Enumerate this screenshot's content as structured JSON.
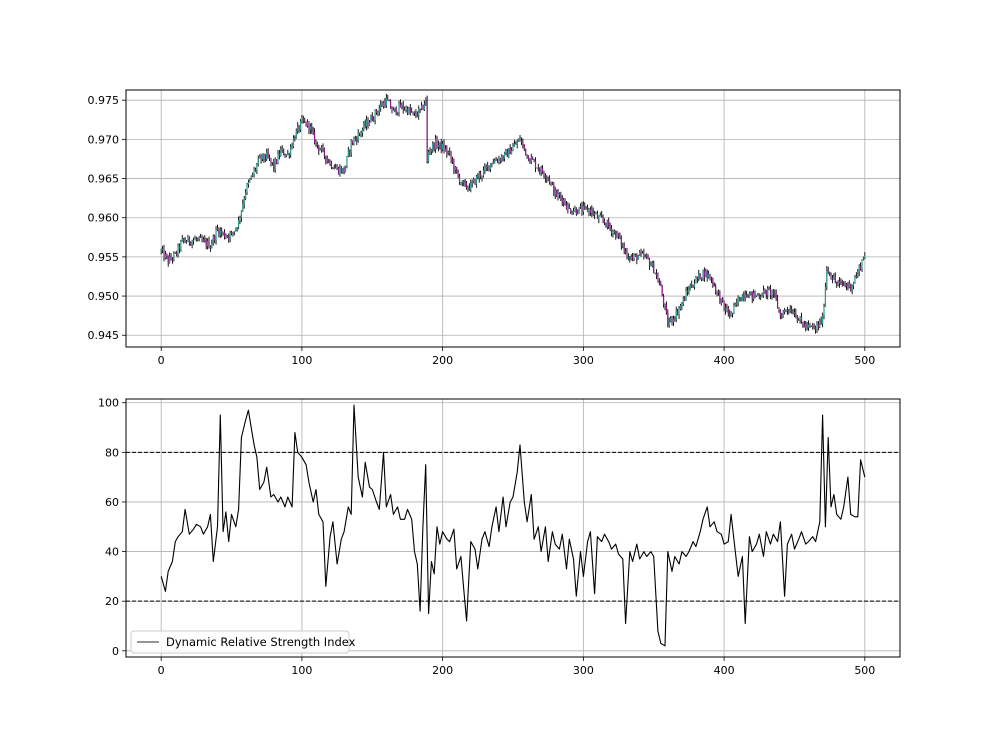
{
  "chart_data": [
    {
      "type": "candlestick",
      "title": "",
      "xlabel": "",
      "ylabel": "",
      "xlim": [
        -25,
        525
      ],
      "ylim": [
        0.9435,
        0.9763
      ],
      "xticks": [
        0,
        100,
        200,
        300,
        400,
        500
      ],
      "yticks": [
        0.945,
        0.95,
        0.955,
        0.96,
        0.965,
        0.97,
        0.975
      ],
      "ytick_format": 3,
      "grid": true,
      "colors": {
        "up": "#2a9d8f",
        "down": "#8b1a8b",
        "wick": "#000000"
      },
      "anchors": {
        "x": [
          0,
          5,
          10,
          15,
          25,
          35,
          40,
          45,
          50,
          55,
          60,
          65,
          70,
          75,
          80,
          85,
          90,
          95,
          100,
          105,
          110,
          115,
          120,
          125,
          130,
          135,
          140,
          145,
          150,
          155,
          160,
          165,
          170,
          175,
          180,
          185,
          188,
          189,
          190,
          195,
          200,
          205,
          210,
          215,
          220,
          225,
          230,
          235,
          240,
          245,
          250,
          255,
          260,
          265,
          270,
          275,
          280,
          285,
          290,
          295,
          300,
          305,
          310,
          315,
          320,
          325,
          330,
          335,
          340,
          345,
          350,
          355,
          360,
          365,
          370,
          375,
          380,
          385,
          390,
          395,
          400,
          405,
          410,
          415,
          420,
          425,
          430,
          435,
          440,
          445,
          450,
          455,
          460,
          465,
          470,
          473,
          475,
          480,
          485,
          490,
          495,
          500
        ],
        "y": [
          0.9557,
          0.9545,
          0.9552,
          0.957,
          0.9572,
          0.9565,
          0.9585,
          0.9578,
          0.9578,
          0.9595,
          0.9635,
          0.9655,
          0.9675,
          0.9678,
          0.9665,
          0.9685,
          0.968,
          0.9705,
          0.9722,
          0.9718,
          0.9695,
          0.9683,
          0.967,
          0.9662,
          0.966,
          0.9695,
          0.9705,
          0.9718,
          0.9728,
          0.974,
          0.975,
          0.9735,
          0.9742,
          0.9738,
          0.973,
          0.9738,
          0.975,
          0.967,
          0.9685,
          0.9695,
          0.969,
          0.968,
          0.9655,
          0.964,
          0.964,
          0.9652,
          0.966,
          0.9672,
          0.9675,
          0.968,
          0.969,
          0.97,
          0.968,
          0.967,
          0.966,
          0.9652,
          0.963,
          0.9625,
          0.961,
          0.961,
          0.961,
          0.961,
          0.96,
          0.9595,
          0.9585,
          0.9575,
          0.9555,
          0.9548,
          0.9552,
          0.9548,
          0.9535,
          0.951,
          0.9465,
          0.9475,
          0.949,
          0.951,
          0.952,
          0.953,
          0.9525,
          0.9505,
          0.9485,
          0.9475,
          0.9495,
          0.9505,
          0.95,
          0.9502,
          0.9505,
          0.9505,
          0.9475,
          0.9485,
          0.948,
          0.9465,
          0.946,
          0.9458,
          0.947,
          0.9535,
          0.953,
          0.9515,
          0.9515,
          0.9512,
          0.953,
          0.9555
        ]
      }
    },
    {
      "type": "line",
      "title": "",
      "xlabel": "",
      "ylabel": "",
      "xlim": [
        -25,
        525
      ],
      "ylim": [
        -2.5,
        101.5
      ],
      "xticks": [
        0,
        100,
        200,
        300,
        400,
        500
      ],
      "yticks": [
        0,
        20,
        40,
        60,
        80,
        100
      ],
      "grid": true,
      "reference_lines": [
        80,
        20
      ],
      "legend": {
        "position": "lower-left",
        "entries": [
          "Dynamic Relative Strength Index"
        ]
      },
      "series": [
        {
          "name": "Dynamic Relative Strength Index",
          "color": "#000000",
          "anchors": {
            "x": [
              0,
              3,
              5,
              8,
              10,
              12,
              15,
              17,
              20,
              23,
              25,
              28,
              30,
              33,
              35,
              37,
              40,
              42,
              44,
              46,
              48,
              50,
              53,
              55,
              57,
              60,
              62,
              64,
              66,
              68,
              70,
              73,
              75,
              78,
              80,
              83,
              85,
              88,
              90,
              93,
              95,
              97,
              100,
              103,
              105,
              108,
              110,
              112,
              115,
              117,
              120,
              122,
              125,
              128,
              130,
              133,
              135,
              137,
              140,
              143,
              145,
              148,
              150,
              153,
              155,
              158,
              160,
              163,
              165,
              168,
              170,
              173,
              175,
              178,
              180,
              182,
              184,
              186,
              188,
              190,
              192,
              194,
              196,
              198,
              200,
              203,
              205,
              208,
              210,
              213,
              215,
              217,
              220,
              223,
              225,
              228,
              230,
              233,
              235,
              238,
              240,
              243,
              245,
              248,
              250,
              253,
              255,
              258,
              260,
              263,
              265,
              268,
              270,
              273,
              275,
              278,
              280,
              283,
              285,
              288,
              290,
              293,
              295,
              298,
              300,
              303,
              305,
              308,
              310,
              313,
              315,
              318,
              320,
              323,
              325,
              328,
              330,
              333,
              335,
              338,
              340,
              343,
              345,
              348,
              350,
              353,
              355,
              358,
              360,
              363,
              365,
              368,
              370,
              373,
              375,
              378,
              380,
              383,
              385,
              388,
              390,
              393,
              395,
              398,
              400,
              403,
              405,
              408,
              410,
              413,
              415,
              418,
              420,
              423,
              425,
              428,
              430,
              433,
              435,
              438,
              440,
              443,
              445,
              448,
              450,
              453,
              455,
              458,
              460,
              463,
              465,
              468,
              470,
              472,
              474,
              476,
              478,
              480,
              483,
              485,
              488,
              490,
              493,
              495,
              497,
              500
            ],
            "y": [
              30,
              24,
              32,
              36,
              44,
              46,
              48,
              57,
              47,
              49,
              51,
              50,
              47,
              50,
              55,
              36,
              50,
              95,
              48,
              56,
              44,
              55,
              50,
              57,
              86,
              93,
              97,
              90,
              83,
              78,
              65,
              68,
              74,
              62,
              63,
              60,
              62,
              58,
              62,
              58,
              88,
              80,
              78,
              75,
              68,
              60,
              65,
              55,
              52,
              26,
              46,
              52,
              35,
              45,
              48,
              58,
              55,
              99,
              70,
              62,
              76,
              66,
              65,
              60,
              57,
              80,
              58,
              63,
              55,
              58,
              53,
              53,
              57,
              53,
              40,
              35,
              16,
              50,
              75,
              15,
              36,
              31,
              50,
              43,
              48,
              45,
              44,
              49,
              33,
              38,
              25,
              12,
              44,
              41,
              33,
              45,
              48,
              42,
              50,
              58,
              48,
              62,
              50,
              60,
              62,
              72,
              83,
              60,
              52,
              63,
              45,
              50,
              40,
              50,
              36,
              48,
              43,
              41,
              47,
              33,
              45,
              37,
              22,
              40,
              30,
              44,
              48,
              23,
              46,
              44,
              47,
              44,
              41,
              43,
              39,
              37,
              11,
              40,
              36,
              43,
              37,
              40,
              38,
              40,
              38,
              8,
              3,
              2,
              40,
              32,
              38,
              35,
              40,
              38,
              40,
              44,
              42,
              48,
              53,
              58,
              50,
              52,
              48,
              47,
              43,
              44,
              55,
              40,
              30,
              38,
              11,
              46,
              40,
              43,
              47,
              38,
              48,
              43,
              47,
              44,
              52,
              22,
              43,
              47,
              41,
              45,
              48,
              43,
              44,
              46,
              44,
              52,
              95,
              50,
              86,
              58,
              63,
              55,
              53,
              58,
              70,
              55,
              54,
              54,
              77,
              70
            ]
          }
        }
      ]
    }
  ]
}
